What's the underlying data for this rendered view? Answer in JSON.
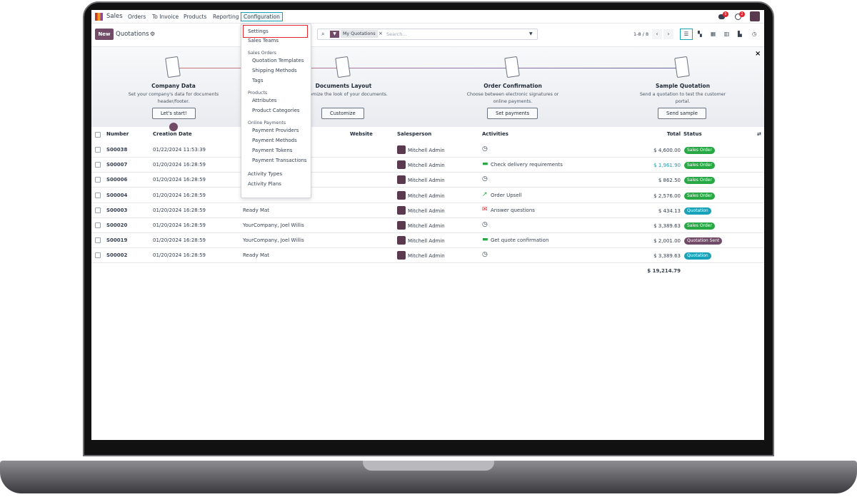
{
  "nav": {
    "app": "Sales",
    "items": [
      "Orders",
      "To Invoice",
      "Products",
      "Reporting",
      "Configuration"
    ],
    "messages_count": "5",
    "activities_count": "2"
  },
  "control": {
    "new_label": "New",
    "title": "Quotations",
    "filter": "My Quotations",
    "search_placeholder": "Search...",
    "pager": "1-8 / 8"
  },
  "banner": {
    "steps": [
      {
        "title": "Company Data",
        "desc": "Set your company's data for documents header/footer.",
        "button": "Let's start!"
      },
      {
        "title": "Documents Layout",
        "desc": "Customize the look of your documents.",
        "button": "Customize"
      },
      {
        "title": "Order Confirmation",
        "desc": "Choose between electronic signatures or online payments.",
        "button": "Set payments"
      },
      {
        "title": "Sample Quotation",
        "desc": "Send a quotation to test the customer portal.",
        "button": "Send sample"
      }
    ]
  },
  "menu": {
    "items": [
      {
        "label": "Settings",
        "type": "item"
      },
      {
        "label": "Sales Teams",
        "type": "item"
      },
      {
        "label": "Sales Orders",
        "type": "header"
      },
      {
        "label": "Quotation Templates",
        "type": "sub"
      },
      {
        "label": "Shipping Methods",
        "type": "sub"
      },
      {
        "label": "Tags",
        "type": "sub"
      },
      {
        "label": "Products",
        "type": "header"
      },
      {
        "label": "Attributes",
        "type": "sub"
      },
      {
        "label": "Product Categories",
        "type": "sub"
      },
      {
        "label": "Online Payments",
        "type": "header"
      },
      {
        "label": "Payment Providers",
        "type": "sub"
      },
      {
        "label": "Payment Methods",
        "type": "sub"
      },
      {
        "label": "Payment Tokens",
        "type": "sub"
      },
      {
        "label": "Payment Transactions",
        "type": "sub"
      },
      {
        "label": "Activity Types",
        "type": "item"
      },
      {
        "label": "Activity Plans",
        "type": "item"
      }
    ]
  },
  "table": {
    "columns": [
      "Number",
      "Creation Date",
      "Website",
      "Salesperson",
      "Activities",
      "Total",
      "Status"
    ],
    "rows": [
      {
        "number": "S00038",
        "date": "01/22/2024 11:53:39",
        "customer": "",
        "salesperson": "Mitchell Admin",
        "activity": "",
        "activity_icon": "clock",
        "total": "$ 4,600.00",
        "status": "Sales Order"
      },
      {
        "number": "S00007",
        "date": "01/20/2024 16:28:59",
        "customer": "",
        "salesperson": "Mitchell Admin",
        "activity": "Check delivery requirements",
        "activity_icon": "todo",
        "total": "$ 1,961.90",
        "status": "Sales Order"
      },
      {
        "number": "S00006",
        "date": "01/20/2024 16:28:59",
        "customer": "",
        "salesperson": "Mitchell Admin",
        "activity": "",
        "activity_icon": "clock",
        "total": "$ 862.50",
        "status": "Sales Order"
      },
      {
        "number": "S00004",
        "date": "01/20/2024 16:28:59",
        "customer": "",
        "salesperson": "Mitchell Admin",
        "activity": "Order Upsell",
        "activity_icon": "chart",
        "total": "$ 2,576.00",
        "status": "Sales Order"
      },
      {
        "number": "S00003",
        "date": "01/20/2024 16:28:59",
        "customer": "Ready Mat",
        "salesperson": "Mitchell Admin",
        "activity": "Answer questions",
        "activity_icon": "email",
        "total": "$ 434.13",
        "status": "Quotation"
      },
      {
        "number": "S00020",
        "date": "01/20/2024 16:28:59",
        "customer": "YourCompany, Joel Willis",
        "salesperson": "Mitchell Admin",
        "activity": "",
        "activity_icon": "clock",
        "total": "$ 3,389.63",
        "status": "Sales Order"
      },
      {
        "number": "S00019",
        "date": "01/20/2024 16:28:59",
        "customer": "YourCompany, Joel Willis",
        "salesperson": "Mitchell Admin",
        "activity": "Get quote confirmation",
        "activity_icon": "todo",
        "total": "$ 2,001.00",
        "status": "Quotation Sent"
      },
      {
        "number": "S00002",
        "date": "01/20/2024 16:28:59",
        "customer": "Ready Mat",
        "salesperson": "Mitchell Admin",
        "activity": "",
        "activity_icon": "clock",
        "total": "$ 3,389.63",
        "status": "Quotation"
      }
    ],
    "grand_total": "$ 19,214.79"
  },
  "colors": {
    "brand": "#714B67",
    "sales_order": "#28a745",
    "quotation": "#17a2b8",
    "quotation_sent": "#714B67",
    "highlight_total": "#17a2b8",
    "menu_highlight": "#e3262f"
  }
}
